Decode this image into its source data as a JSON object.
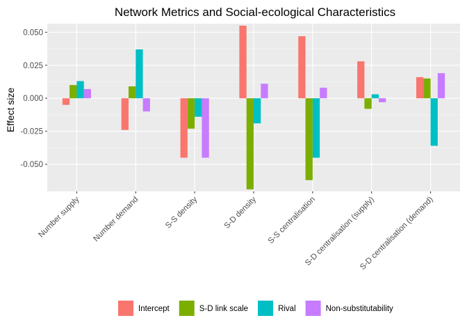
{
  "chart_data": {
    "type": "bar",
    "title": "Network Metrics and Social-ecological Characteristics",
    "xlabel": "",
    "ylabel": "Effect size",
    "categories": [
      "Number supply",
      "Number demand",
      "S-S density",
      "S-D density",
      "S-S centralisation",
      "S-D centralisation (supply)",
      "S-D centralisation (demand)"
    ],
    "series": [
      {
        "name": "Intercept",
        "color": "#F8766D",
        "values": [
          -0.005,
          -0.024,
          -0.045,
          0.055,
          0.047,
          0.028,
          0.016
        ]
      },
      {
        "name": "S-D link scale",
        "color": "#7CAE00",
        "values": [
          0.01,
          0.009,
          -0.023,
          -0.069,
          -0.062,
          -0.008,
          0.015
        ]
      },
      {
        "name": "Rival",
        "color": "#00BFC4",
        "values": [
          0.013,
          0.037,
          -0.014,
          -0.019,
          -0.045,
          0.003,
          -0.036
        ]
      },
      {
        "name": "Non-substitutability",
        "color": "#C77CFF",
        "values": [
          0.007,
          -0.01,
          -0.045,
          0.011,
          0.008,
          -0.003,
          0.019
        ]
      }
    ],
    "yticks": [
      "-0.050",
      "-0.025",
      "0.000",
      "0.025",
      "0.050"
    ],
    "ylim": [
      -0.0705,
      0.0565
    ],
    "grid": true,
    "legend_position": "bottom",
    "panel_color": "#EBEBEB"
  }
}
